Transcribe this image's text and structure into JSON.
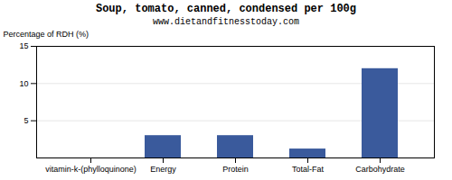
{
  "chart_data": {
    "type": "bar",
    "title": "Soup, tomato, canned, condensed per 100g",
    "subtitle": "www.dietandfitnesstoday.com",
    "categories": [
      "vitamin-k-(phylloquinone)",
      "Energy",
      "Protein",
      "Total-Fat",
      "Carbohydrate"
    ],
    "values": [
      0.0,
      3.0,
      3.0,
      1.2,
      12.0
    ],
    "color": "#3a5a9c",
    "ylabel": "Percentage of RDH (%)",
    "ylim": [
      0,
      15
    ],
    "yticks": [
      5,
      10,
      15
    ],
    "grid": true
  }
}
